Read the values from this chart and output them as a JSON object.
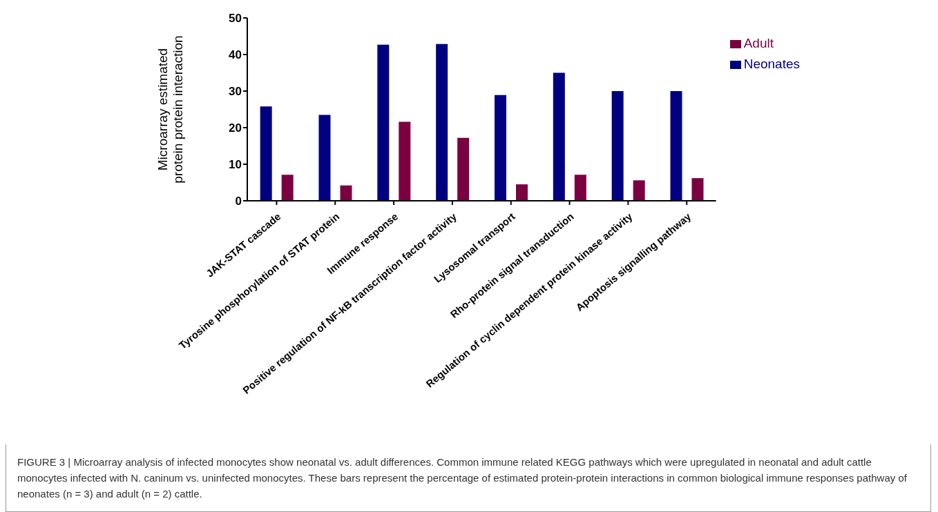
{
  "chart_data": {
    "type": "bar",
    "ylabel": "Microarray estimated protein protein interaction",
    "categories": [
      "JAK-STAT cascade",
      "Tyrosine phosphorylation of STAT protein",
      "Immune response",
      "Positive regulation of NF-kB transcription factor activity",
      "Lysosomal transport",
      "Rho-protein signal transduction",
      "Regulation of cyclin dependent protein kinase activity",
      "Apoptosis signalling pathway"
    ],
    "series": [
      {
        "name": "Neonates",
        "color": "#000080",
        "values": [
          25.8,
          23.5,
          42.7,
          42.9,
          28.9,
          35,
          30,
          30
        ]
      },
      {
        "name": "Adult",
        "color": "#7b0041",
        "values": [
          7.1,
          4.2,
          21.6,
          17.2,
          4.5,
          7.1,
          5.6,
          6.2
        ]
      }
    ],
    "ylim": [
      0,
      50
    ],
    "yticks": [
      0,
      10,
      20,
      30,
      40,
      50
    ],
    "grid": false,
    "legend": "top right",
    "annotations": [
      "FIGURE 3 | Microarray analysis of infected monocytes show neonatal vs. adult differences. Common immune related KEGG pathways which were upregulated in neonatal and adult cattle monocytes infected with N. caninum vs. uninfected monocytes. These bars represent the percentage of estimated protein-protein interactions in common biological immune responses pathway of neonates (n = 3) and adult (n = 2) cattle."
    ]
  }
}
